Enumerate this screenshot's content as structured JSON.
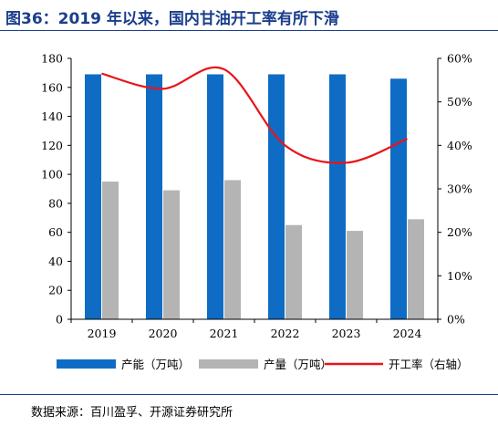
{
  "title": "图36：2019 年以来，国内甘油开工率有所下滑",
  "source": "数据来源：百川盈孚、开源证券研究所",
  "colors": {
    "capacity": "#0f6cc4",
    "output": "#b4b4b4",
    "rate": "#e8141a",
    "title": "#1a3e8c"
  },
  "chart_data": {
    "type": "bar",
    "categories": [
      "2019",
      "2020",
      "2021",
      "2022",
      "2023",
      "2024"
    ],
    "series": [
      {
        "name": "产能（万吨）",
        "type": "bar",
        "axis": "left",
        "values": [
          169,
          169,
          169,
          169,
          169,
          166
        ]
      },
      {
        "name": "产量（万吨）",
        "type": "bar",
        "axis": "left",
        "values": [
          95,
          89,
          96,
          65,
          61,
          69
        ]
      },
      {
        "name": "开工率（右轴）",
        "type": "line",
        "axis": "right",
        "values": [
          56.5,
          53,
          57.5,
          40,
          36,
          41.5
        ]
      }
    ],
    "left_axis": {
      "min": 0,
      "max": 180,
      "step": 20,
      "tick_labels": [
        "0",
        "20",
        "40",
        "60",
        "80",
        "100",
        "120",
        "140",
        "160",
        "180"
      ]
    },
    "right_axis": {
      "min": 0,
      "max": 60,
      "step": 10,
      "tick_labels": [
        "0%",
        "10%",
        "20%",
        "30%",
        "40%",
        "50%",
        "60%"
      ]
    },
    "legend_position": "bottom",
    "grid": false
  }
}
